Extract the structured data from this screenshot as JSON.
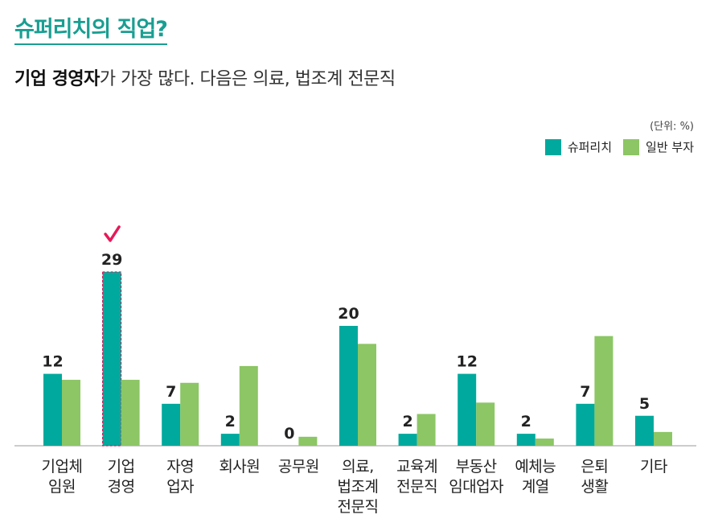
{
  "title": "슈퍼리치의 직업?",
  "subtitle": {
    "bold": "기업 경영자",
    "rest": "가 가장 많다. 다음은 의료, 법조계 전문직"
  },
  "unit": "(단위: %)",
  "colors": {
    "super_rich": "#00a99d",
    "general": "#8cc665",
    "title": "#1a9e92",
    "check": "#e6195a"
  },
  "chart_data": {
    "type": "bar",
    "categories": [
      "기업체\n임원",
      "기업\n경영",
      "자영\n업자",
      "회사원",
      "공무원",
      "의료,\n법조계\n전문직",
      "교육계\n전문직",
      "부동산\n임대업자",
      "예체능\n계열",
      "은퇴\n생활",
      "기타"
    ],
    "series": [
      {
        "name": "슈퍼리치",
        "values": [
          12,
          29,
          7,
          2,
          0,
          20,
          2,
          12,
          2,
          7,
          5
        ],
        "labels_shown": true
      },
      {
        "name": "일반 부자",
        "values": [
          11,
          11,
          10.5,
          13.3,
          1.5,
          17,
          5.3,
          7.2,
          1.2,
          18.3,
          2.3
        ],
        "labels_shown": false
      }
    ],
    "ylim": [
      0,
      30
    ],
    "highlight_index": 1,
    "legend_position": "top-right",
    "grid": false
  }
}
